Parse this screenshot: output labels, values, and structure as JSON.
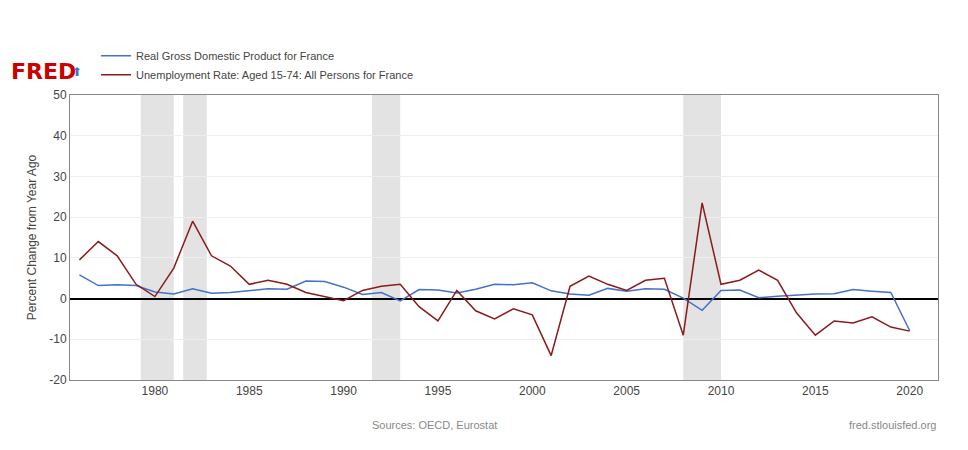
{
  "chart_data": {
    "type": "line",
    "x": [
      1976,
      1977,
      1978,
      1979,
      1980,
      1981,
      1982,
      1983,
      1984,
      1985,
      1986,
      1987,
      1988,
      1989,
      1990,
      1991,
      1992,
      1993,
      1994,
      1995,
      1996,
      1997,
      1998,
      1999,
      2000,
      2001,
      2002,
      2003,
      2004,
      2005,
      2006,
      2007,
      2008,
      2009,
      2010,
      2011,
      2012,
      2013,
      2014,
      2015,
      2016,
      2017,
      2018,
      2019,
      2020
    ],
    "series": [
      {
        "name": "Real Gross Domestic Product for France",
        "color": "#4472c4",
        "values": [
          5.8,
          3.2,
          3.4,
          3.2,
          1.6,
          1.1,
          2.4,
          1.3,
          1.5,
          1.9,
          2.4,
          2.3,
          4.3,
          4.2,
          2.8,
          1.0,
          1.5,
          -0.6,
          2.2,
          2.1,
          1.4,
          2.3,
          3.5,
          3.4,
          3.9,
          1.9,
          1.1,
          0.8,
          2.5,
          1.8,
          2.4,
          2.3,
          0.1,
          -2.9,
          2.0,
          2.1,
          0.2,
          0.6,
          0.9,
          1.1,
          1.2,
          2.2,
          1.8,
          1.5,
          -7.9
        ]
      },
      {
        "name": "Unemployment Rate: Aged 15-74: All Persons for France",
        "color": "#8b1a1a",
        "values": [
          9.5,
          14.0,
          10.5,
          3.5,
          0.5,
          7.5,
          19.0,
          10.5,
          8.0,
          3.5,
          4.5,
          3.5,
          1.5,
          0.5,
          -0.5,
          2.0,
          3.0,
          3.5,
          -2.0,
          -5.5,
          2.0,
          -3.0,
          -5.0,
          -2.5,
          -4.0,
          -14.0,
          3.0,
          5.5,
          3.5,
          2.0,
          4.5,
          5.0,
          -9.0,
          23.5,
          3.5,
          4.5,
          7.0,
          4.5,
          -3.5,
          -9.0,
          -5.5,
          -6.0,
          -4.5,
          -7.0,
          -8.0
        ]
      }
    ],
    "ylabel": "Percent Change from Year Ago",
    "xlim": [
      1975.5,
      2021.5
    ],
    "xticks": [
      1980,
      1985,
      1990,
      1995,
      2000,
      2005,
      2010,
      2015,
      2020
    ],
    "ylim": [
      -20,
      50
    ],
    "yticks": [
      -20,
      -10,
      0,
      10,
      20,
      30,
      40,
      50
    ],
    "grid": true,
    "legend": "upper left",
    "recession_bands": [
      [
        1979.25,
        1981.0
      ],
      [
        1981.5,
        1982.75
      ],
      [
        1991.5,
        1993.0
      ],
      [
        2008.0,
        2010.0
      ]
    ],
    "annotations": [
      "FRED",
      "⬆",
      "Sources: OECD, Eurostat",
      "fred.stlouisfed.org"
    ]
  }
}
